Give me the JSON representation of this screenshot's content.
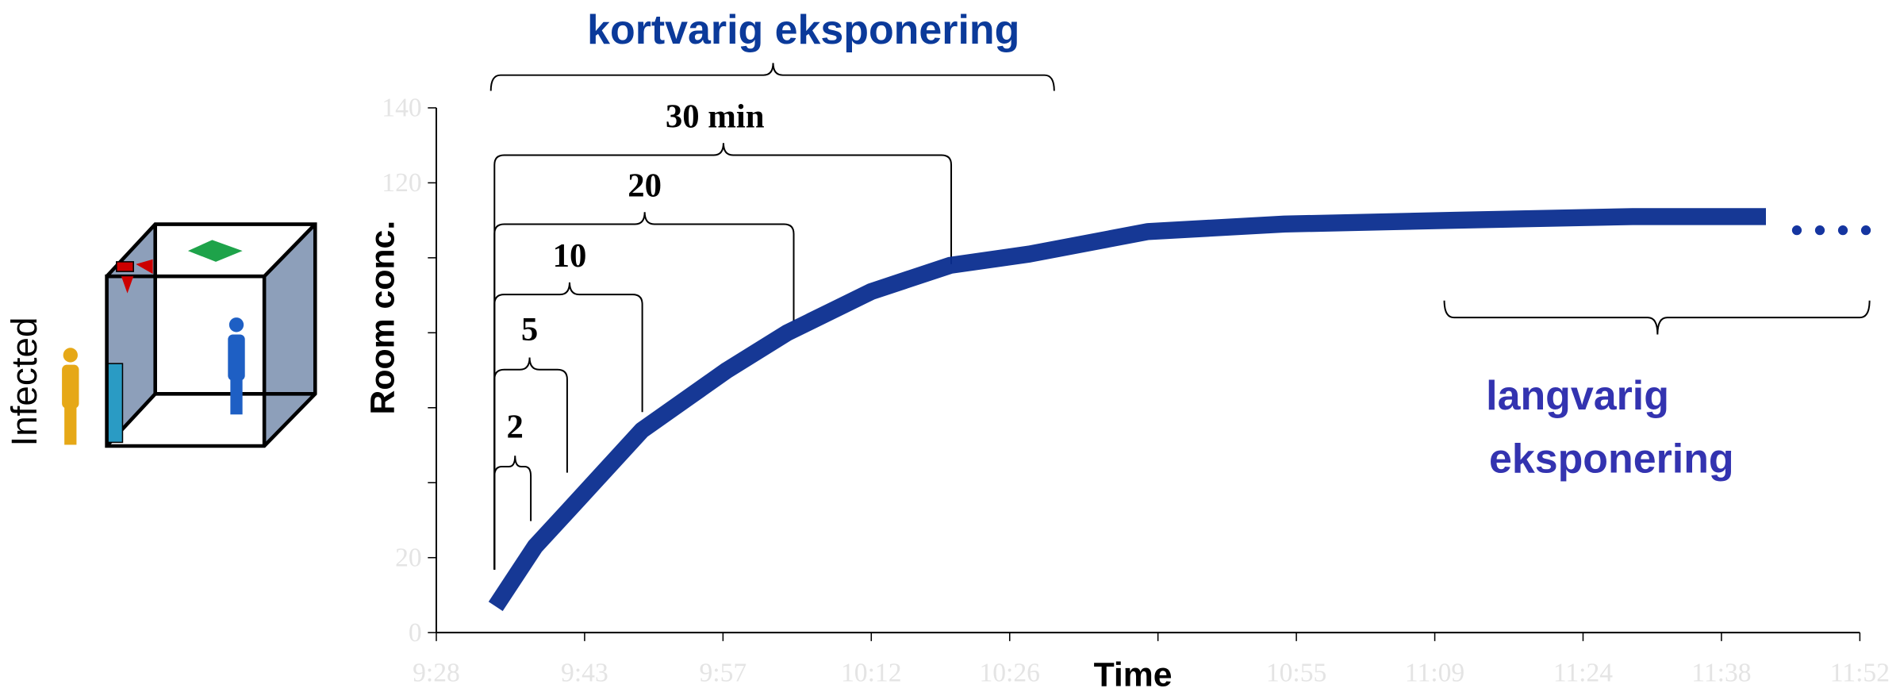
{
  "chart_data": {
    "type": "line",
    "x_axis_label": "Time",
    "y_axis_label": "Room  conc.",
    "x": [
      574,
      578,
      581.5,
      588.8,
      597.4,
      603.5,
      612,
      620,
      628,
      640,
      653.8,
      671,
      689,
      702.5
    ],
    "series": [
      {
        "color": "#0a2d8f",
        "values": [
          7,
          23,
          33,
          54,
          70,
          80,
          91,
          98,
          101,
          107,
          109,
          110,
          111,
          111
        ]
      }
    ],
    "xlim": [
      568,
      712
    ],
    "ylim": [
      0,
      140
    ],
    "xticks": [
      {
        "value": 568,
        "label": "9:28"
      },
      {
        "value": 583,
        "label": "9:43"
      },
      {
        "value": 597,
        "label": "9:57"
      },
      {
        "value": 612,
        "label": "10:12"
      },
      {
        "value": 626,
        "label": "10:26"
      },
      {
        "value": 641,
        "label": null
      },
      {
        "value": 655,
        "label": "10:55"
      },
      {
        "value": 669,
        "label": "11:09"
      },
      {
        "value": 684,
        "label": "11:24"
      },
      {
        "value": 698,
        "label": "11:38"
      },
      {
        "value": 712,
        "label": "11:52"
      }
    ],
    "yticks": [
      0,
      20,
      {
        "value": 40,
        "label": null
      },
      {
        "value": 60,
        "label": null
      },
      {
        "value": 80,
        "label": null
      },
      {
        "value": 100,
        "label": null
      },
      120,
      140
    ],
    "annotations": [
      "kortvarig eksponering",
      "30 min",
      "20",
      "10",
      "5",
      "2",
      "langvarig",
      "eksponering"
    ]
  },
  "illustration": {
    "label": "Infected"
  }
}
